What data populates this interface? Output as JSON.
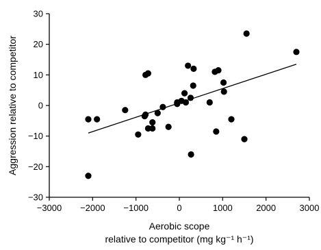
{
  "chart_data": {
    "type": "scatter",
    "title": "",
    "xlabel_line1": "Aerobic scope",
    "xlabel_line2": "relative to competitor (mg kg⁻¹ h⁻¹)",
    "ylabel": "Aggression relative to competitor",
    "xlim": [
      -3000,
      3000
    ],
    "ylim": [
      -30,
      30
    ],
    "xticks": [
      -3000,
      -2000,
      -1000,
      0,
      1000,
      2000,
      3000
    ],
    "yticks": [
      -30,
      -20,
      -10,
      0,
      10,
      20,
      30
    ],
    "xtick_labels": [
      "−3000",
      "−2000",
      "−1000",
      "0",
      "1000",
      "2000",
      "3000"
    ],
    "ytick_labels": [
      "−30",
      "−20",
      "−10",
      "0",
      "10",
      "20",
      "30"
    ],
    "grid": false,
    "legend": "none",
    "marker_color": "#000000",
    "points": [
      {
        "x": -2100,
        "y": -4.5
      },
      {
        "x": -2100,
        "y": -23
      },
      {
        "x": -1900,
        "y": -4.5
      },
      {
        "x": -1250,
        "y": -1.5
      },
      {
        "x": -950,
        "y": -9.5
      },
      {
        "x": -800,
        "y": -3.5
      },
      {
        "x": -780,
        "y": -3
      },
      {
        "x": -780,
        "y": 10
      },
      {
        "x": -720,
        "y": 10.5
      },
      {
        "x": -720,
        "y": -7.5
      },
      {
        "x": -620,
        "y": -5.5
      },
      {
        "x": -620,
        "y": -7.5
      },
      {
        "x": -500,
        "y": -2.5
      },
      {
        "x": -380,
        "y": -0.5
      },
      {
        "x": -250,
        "y": -7
      },
      {
        "x": -50,
        "y": 0.5
      },
      {
        "x": -50,
        "y": 1
      },
      {
        "x": 50,
        "y": 1.5
      },
      {
        "x": 120,
        "y": 4
      },
      {
        "x": 150,
        "y": 1
      },
      {
        "x": 200,
        "y": 13
      },
      {
        "x": 260,
        "y": 2.5
      },
      {
        "x": 270,
        "y": -16
      },
      {
        "x": 320,
        "y": 6.5
      },
      {
        "x": 330,
        "y": 12
      },
      {
        "x": 700,
        "y": 1
      },
      {
        "x": 820,
        "y": 11
      },
      {
        "x": 850,
        "y": -8.5
      },
      {
        "x": 900,
        "y": 11.5
      },
      {
        "x": 1020,
        "y": 7.5
      },
      {
        "x": 1030,
        "y": 4.5
      },
      {
        "x": 1200,
        "y": -4.5
      },
      {
        "x": 1500,
        "y": -11
      },
      {
        "x": 1550,
        "y": 23.5
      },
      {
        "x": 2700,
        "y": 17.5
      }
    ],
    "trendline": {
      "x": [
        -2100,
        2700
      ],
      "y": [
        -9,
        13.5
      ]
    }
  }
}
